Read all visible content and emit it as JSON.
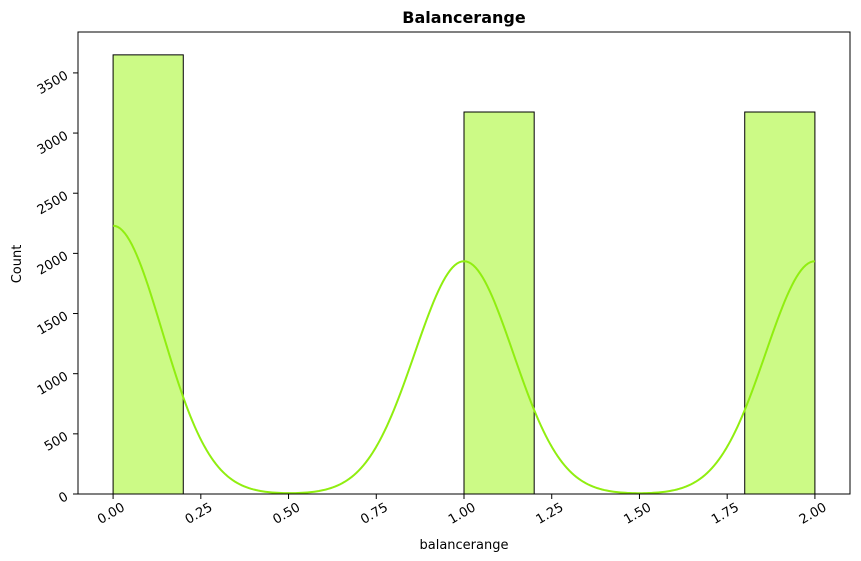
{
  "chart_data": {
    "type": "bar",
    "title": "Balancerange",
    "xlabel": "balancerange",
    "ylabel": "Count",
    "xlim": [
      -0.1,
      2.1
    ],
    "ylim": [
      0,
      3840
    ],
    "bins": [
      {
        "start": 0.0,
        "end": 0.2,
        "count": 3650
      },
      {
        "start": 0.2,
        "end": 0.4,
        "count": 0
      },
      {
        "start": 0.4,
        "end": 0.6,
        "count": 0
      },
      {
        "start": 0.6,
        "end": 0.8,
        "count": 0
      },
      {
        "start": 0.8,
        "end": 1.0,
        "count": 0
      },
      {
        "start": 1.0,
        "end": 1.2,
        "count": 3175
      },
      {
        "start": 1.2,
        "end": 1.4,
        "count": 0
      },
      {
        "start": 1.4,
        "end": 1.6,
        "count": 0
      },
      {
        "start": 1.6,
        "end": 1.8,
        "count": 0
      },
      {
        "start": 1.8,
        "end": 2.0,
        "count": 3175
      }
    ],
    "xticks": [
      "0.00",
      "0.25",
      "0.50",
      "0.75",
      "1.00",
      "1.25",
      "1.50",
      "1.75",
      "2.00"
    ],
    "yticks": [
      "0",
      "500",
      "1000",
      "1500",
      "2000",
      "2500",
      "3000",
      "3500"
    ],
    "kde": {
      "peaks": [
        {
          "x": 0.0,
          "y": 2230
        },
        {
          "x": 1.0,
          "y": 1935
        },
        {
          "x": 2.0,
          "y": 1935
        }
      ],
      "bandwidth": 0.14
    },
    "bar_color": "#ccfa86",
    "bar_edge_color": "#000000",
    "kde_color": "#90ee10",
    "grid": false,
    "tick_rotation_deg": 30
  }
}
